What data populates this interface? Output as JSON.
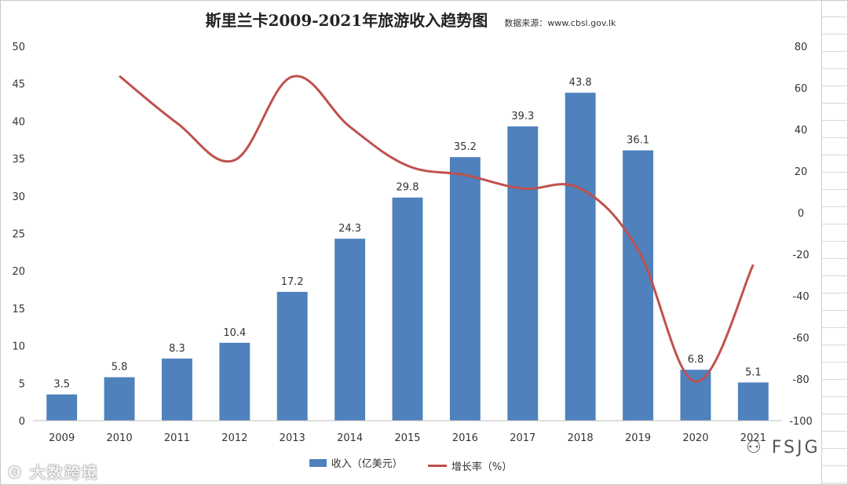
{
  "chart_data": {
    "type": "bar+line",
    "title": "斯里兰卡2009-2021年旅游收入趋势图",
    "subtitle": "数据来源：www.cbsl.gov.lk",
    "categories": [
      "2009",
      "2010",
      "2011",
      "2012",
      "2013",
      "2014",
      "2015",
      "2016",
      "2017",
      "2018",
      "2019",
      "2020",
      "2021"
    ],
    "series": [
      {
        "name": "收入（亿美元）",
        "type": "bar",
        "axis": "left",
        "color": "#4f81bd",
        "values": [
          3.5,
          5.8,
          8.3,
          10.4,
          17.2,
          24.3,
          29.8,
          35.2,
          39.3,
          43.8,
          36.1,
          6.8,
          5.1
        ],
        "labels": [
          "3.5",
          "5.8",
          "8.3",
          "10.4",
          "17.2",
          "24.3",
          "29.8",
          "35.2",
          "39.3",
          "43.8",
          "36.1",
          "6.8",
          "5.1"
        ]
      },
      {
        "name": "增长率（%）",
        "type": "line",
        "axis": "right",
        "color": "#c0504d",
        "values": [
          null,
          65.7,
          43.1,
          25.3,
          65.4,
          41.3,
          22.6,
          18.1,
          11.6,
          11.6,
          -17.8,
          -81.2,
          -25.0
        ]
      }
    ],
    "y_left": {
      "min": 0,
      "max": 50,
      "step": 5,
      "ticks": [
        "0",
        "5",
        "10",
        "15",
        "20",
        "25",
        "30",
        "35",
        "40",
        "45",
        "50"
      ]
    },
    "y_right": {
      "min": -100,
      "max": 80,
      "step": 20,
      "ticks": [
        "-100",
        "-80",
        "-60",
        "-40",
        "-20",
        "0",
        "20",
        "40",
        "60",
        "80"
      ]
    },
    "legend_position": "bottom"
  },
  "watermarks": {
    "left": "大数跨境",
    "right": "FSJG"
  }
}
